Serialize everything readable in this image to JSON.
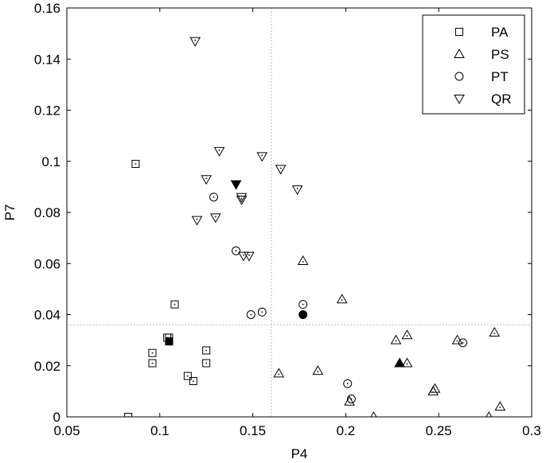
{
  "chart_data": {
    "type": "scatter",
    "title": "",
    "xlabel": "P4",
    "ylabel": "P7",
    "xlim": [
      0.05,
      0.3
    ],
    "ylim": [
      0,
      0.16
    ],
    "xticks": [
      0.05,
      0.1,
      0.15,
      0.2,
      0.25,
      0.3
    ],
    "xtick_labels": [
      "0.05",
      "0.1",
      "0.15",
      "0.2",
      "0.25",
      "0.3"
    ],
    "yticks": [
      0,
      0.02,
      0.04,
      0.06,
      0.08,
      0.1,
      0.12,
      0.14,
      0.16
    ],
    "ytick_labels": [
      "0",
      "0.02",
      "0.04",
      "0.06",
      "0.08",
      "0.1",
      "0.12",
      "0.14",
      "0.16"
    ],
    "grid": false,
    "reference_lines": {
      "x": 0.16,
      "y": 0.036,
      "style": "dotted",
      "color": "#bbbbbb"
    },
    "legend_position": "top-right",
    "series": [
      {
        "name": "PA",
        "marker": "square",
        "points": [
          [
            0.087,
            0.099
          ],
          [
            0.083,
            0.0
          ],
          [
            0.096,
            0.025
          ],
          [
            0.096,
            0.021
          ],
          [
            0.104,
            0.031
          ],
          [
            0.105,
            0.031
          ],
          [
            0.108,
            0.044
          ],
          [
            0.115,
            0.016
          ],
          [
            0.118,
            0.014
          ],
          [
            0.125,
            0.026
          ],
          [
            0.125,
            0.021
          ]
        ],
        "highlight": [
          [
            0.105,
            0.0295
          ]
        ]
      },
      {
        "name": "PS",
        "marker": "triangle-up",
        "points": [
          [
            0.164,
            0.017
          ],
          [
            0.177,
            0.061
          ],
          [
            0.185,
            0.018
          ],
          [
            0.198,
            0.046
          ],
          [
            0.202,
            0.006
          ],
          [
            0.215,
            0.0
          ],
          [
            0.227,
            0.03
          ],
          [
            0.233,
            0.032
          ],
          [
            0.233,
            0.021
          ],
          [
            0.247,
            0.01
          ],
          [
            0.248,
            0.011
          ],
          [
            0.26,
            0.03
          ],
          [
            0.277,
            0.0
          ],
          [
            0.28,
            0.033
          ],
          [
            0.283,
            0.004
          ]
        ],
        "highlight": [
          [
            0.229,
            0.021
          ]
        ]
      },
      {
        "name": "PT",
        "marker": "circle",
        "points": [
          [
            0.129,
            0.086
          ],
          [
            0.141,
            0.065
          ],
          [
            0.149,
            0.04
          ],
          [
            0.155,
            0.041
          ],
          [
            0.177,
            0.044
          ],
          [
            0.201,
            0.013
          ],
          [
            0.203,
            0.007
          ],
          [
            0.263,
            0.029
          ]
        ],
        "highlight": [
          [
            0.177,
            0.04
          ]
        ]
      },
      {
        "name": "QR",
        "marker": "triangle-down",
        "points": [
          [
            0.119,
            0.147
          ],
          [
            0.12,
            0.077
          ],
          [
            0.125,
            0.093
          ],
          [
            0.13,
            0.078
          ],
          [
            0.132,
            0.104
          ],
          [
            0.144,
            0.086
          ],
          [
            0.144,
            0.085
          ],
          [
            0.145,
            0.063
          ],
          [
            0.148,
            0.063
          ],
          [
            0.155,
            0.102
          ],
          [
            0.165,
            0.097
          ],
          [
            0.174,
            0.089
          ]
        ],
        "highlight": [
          [
            0.141,
            0.091
          ]
        ]
      }
    ]
  }
}
